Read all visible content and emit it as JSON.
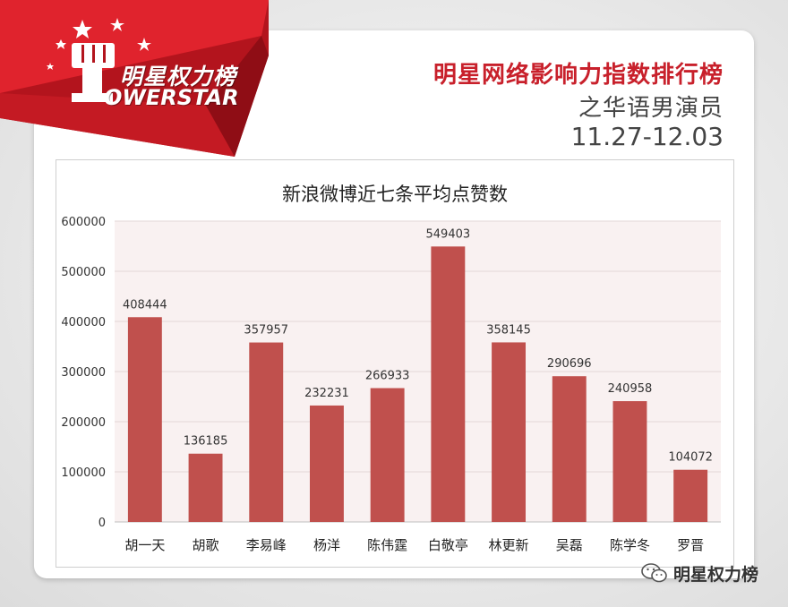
{
  "branding": {
    "logo_cn": "明星权力榜",
    "logo_en": "OWERSTAR"
  },
  "header": {
    "title": "明星网络影响力指数排行榜",
    "subtitle": "之华语男演员",
    "date_range": "11.27-12.03"
  },
  "watermark": {
    "text": "明星权力榜",
    "icon": "wechat-icon"
  },
  "colors": {
    "brand_red": "#c8202b",
    "bar": "#c0504d",
    "plot_bg": "#f9f1f1"
  },
  "chart_data": {
    "type": "bar",
    "title": "新浪微博近七条平均点赞数",
    "xlabel": "",
    "ylabel": "",
    "categories": [
      "胡一天",
      "胡歌",
      "李易峰",
      "杨洋",
      "陈伟霆",
      "白敬亭",
      "林更新",
      "吴磊",
      "陈学冬",
      "罗晋"
    ],
    "values": [
      408444,
      136185,
      357957,
      232231,
      266933,
      549403,
      358145,
      290696,
      240958,
      104072
    ],
    "ylim": [
      0,
      600000
    ],
    "yticks": [
      0,
      100000,
      200000,
      300000,
      400000,
      500000,
      600000
    ],
    "grid": true,
    "data_labels": true
  }
}
